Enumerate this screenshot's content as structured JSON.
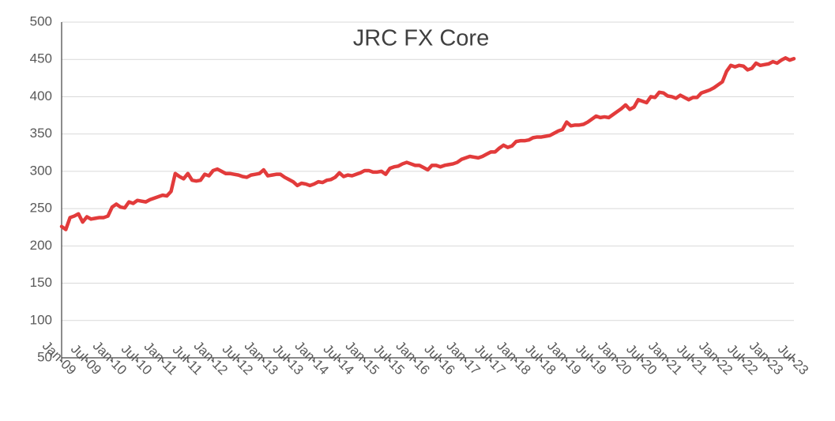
{
  "chart_data": {
    "type": "line",
    "title": "JRC FX Core",
    "categories": [
      "Jan-09",
      null,
      null,
      null,
      null,
      null,
      "Jul-09",
      null,
      null,
      null,
      null,
      null,
      "Jan-10",
      null,
      null,
      null,
      null,
      null,
      "Jul-10",
      null,
      null,
      null,
      null,
      null,
      "Jan-11",
      null,
      null,
      null,
      null,
      null,
      "Jul-11",
      null,
      null,
      null,
      null,
      null,
      "Jan-12",
      null,
      null,
      null,
      null,
      null,
      "Jul-12",
      null,
      null,
      null,
      null,
      null,
      "Jan-13",
      null,
      null,
      null,
      null,
      null,
      "Jul-13",
      null,
      null,
      null,
      null,
      null,
      "Jan-14",
      null,
      null,
      null,
      null,
      null,
      "Jul-14",
      null,
      null,
      null,
      null,
      null,
      "Jan-15",
      null,
      null,
      null,
      null,
      null,
      "Jul-15",
      null,
      null,
      null,
      null,
      null,
      "Jan-16",
      null,
      null,
      null,
      null,
      null,
      "Jul-16",
      null,
      null,
      null,
      null,
      null,
      "Jan-17",
      null,
      null,
      null,
      null,
      null,
      "Jul-17",
      null,
      null,
      null,
      null,
      null,
      "Jan-18",
      null,
      null,
      null,
      null,
      null,
      "Jul-18",
      null,
      null,
      null,
      null,
      null,
      "Jan-19",
      null,
      null,
      null,
      null,
      null,
      "Jul-19",
      null,
      null,
      null,
      null,
      null,
      "Jan-20",
      null,
      null,
      null,
      null,
      null,
      "Jul-20",
      null,
      null,
      null,
      null,
      null,
      "Jan-21",
      null,
      null,
      null,
      null,
      null,
      "Jul-21",
      null,
      null,
      null,
      null,
      null,
      "Jan-22",
      null,
      null,
      null,
      null,
      null,
      "Jul-22",
      null,
      null,
      null,
      null,
      null,
      "Jan-23",
      null,
      null,
      null,
      null,
      null,
      "Jul-23"
    ],
    "series": [
      {
        "name": "JRC FX Core",
        "color": "#e23b3b",
        "values": [
          226,
          222,
          238,
          240,
          243,
          232,
          239,
          236,
          237,
          238,
          238,
          240,
          252,
          256,
          252,
          251,
          259,
          257,
          261,
          260,
          259,
          262,
          264,
          266,
          268,
          267,
          273,
          297,
          293,
          290,
          297,
          288,
          287,
          288,
          296,
          294,
          301,
          303,
          300,
          297,
          297,
          296,
          295,
          293,
          292,
          295,
          296,
          297,
          302,
          294,
          295,
          296,
          296,
          292,
          289,
          286,
          281,
          284,
          283,
          281,
          283,
          286,
          285,
          288,
          289,
          292,
          298,
          293,
          295,
          294,
          296,
          298,
          301,
          301,
          299,
          299,
          300,
          296,
          304,
          306,
          307,
          310,
          312,
          310,
          308,
          308,
          305,
          302,
          308,
          308,
          306,
          308,
          309,
          310,
          312,
          316,
          318,
          320,
          319,
          318,
          320,
          323,
          326,
          326,
          331,
          335,
          332,
          334,
          340,
          341,
          341,
          342,
          345,
          346,
          346,
          347,
          348,
          351,
          354,
          356,
          366,
          361,
          362,
          362,
          363,
          366,
          370,
          374,
          372,
          373,
          372,
          376,
          380,
          384,
          389,
          383,
          386,
          396,
          394,
          392,
          400,
          399,
          406,
          405,
          401,
          400,
          398,
          402,
          399,
          396,
          399,
          399,
          405,
          407,
          409,
          412,
          416,
          420,
          434,
          442,
          440,
          442,
          441,
          436,
          438,
          445,
          442,
          443,
          444,
          447,
          445,
          449,
          452,
          449,
          451
        ]
      }
    ],
    "ylim": [
      50,
      500
    ],
    "yticks": [
      50,
      100,
      150,
      200,
      250,
      300,
      350,
      400,
      450,
      500
    ],
    "grid": true
  }
}
